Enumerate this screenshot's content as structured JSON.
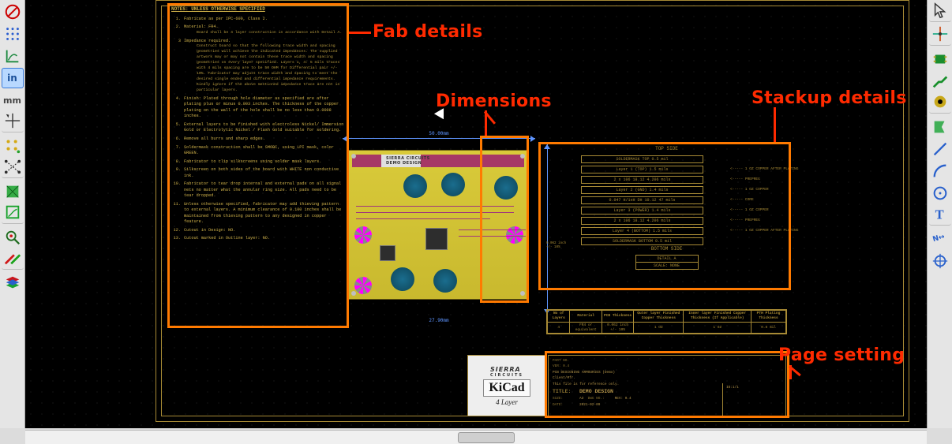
{
  "colors": {
    "canvas_bg": "#000000",
    "grid_dot": "#2a2a2a",
    "sheet_line": "#a78a35",
    "fab_text": "#d0b24a",
    "dim_line": "#5e95ff",
    "annotation_text": "#ff2a00",
    "callout_border": "#ff7a00",
    "pcb_fill": "#d9ca3a",
    "pcb_magenta": "#a0357c",
    "pcb_teal": "#1a6d8e"
  },
  "annotations": {
    "fab": "Fab details",
    "dims": "Dimensions",
    "stack": "Stackup details",
    "page": "Page setting"
  },
  "fab_notes": {
    "title": "NOTES: UNLESS OTHERWISE SPECIFIED",
    "items": [
      {
        "n": "1.",
        "t": "Fabricate as per IPC-600, Class 2."
      },
      {
        "n": "2.",
        "t": "Material: FR4.",
        "sub": "Board shall be 4 layer construction in accordance with Detail A."
      },
      {
        "n": "3",
        "t": "Impedance required.",
        "sub": "Construct board so that the following trace width and spacing geometries will achieve the indicated impedances. The supplied artwork may or may not contain these trace width and spacing geometries on every layer specified.\nLayers 1, 4: 5 mils traces with 4 mils spacing are to be 50 OHM for Differential pair +/- 10%.\nFabricator may adjust trace width and spacing to meet the desired single ended and differential impedance requirements.\nKindly ignore if the above mentioned impedance trace are not in particular layers."
      },
      {
        "n": "4.",
        "t": "Finish: Plated through hole diameter as specified are after plating plus or minus 0.003 inches. The thickness of the copper plating on the wall of the hole shall be no less than 0.0008 inches."
      },
      {
        "n": "5.",
        "t": "External layers to be finished with electroless Nickel/ Immersion Gold or Electrolytic Nickel / Flash Gold suitable for soldering."
      },
      {
        "n": "6.",
        "t": "Remove all burrs and sharp edges."
      },
      {
        "n": "7.",
        "t": "Soldermask construction shall be SMOBC, using LPI mask, color GREEN."
      },
      {
        "n": "8.",
        "t": "Fabricator to clip silkscreens using solder mask layers."
      },
      {
        "n": "9.",
        "t": "Silkscreen on both sides of the board with WHITE non conductive ink."
      },
      {
        "n": "10.",
        "t": "Fabricator to tear drop internal and external pads on all signal nets no matter what the annular ring size. All pads need to be tear dropped."
      },
      {
        "n": "11.",
        "t": "Unless otherwise specified, fabricator may add thieving pattern to external layers. A minimum clearance of 0.100 inches shall be maintained from thieving pattern to any designed in copper feature."
      },
      {
        "n": "12.",
        "t": "Cutout in Design: NO."
      },
      {
        "n": "13.",
        "t": "Cutout marked in Outline layer: NO."
      }
    ]
  },
  "pcb": {
    "title1": "SIERRA CIRCUITS",
    "title2": "DEMO DESIGN",
    "dims": {
      "width": "50.00mm",
      "height_label": "",
      "bottom": "27.90mm"
    }
  },
  "stackup": {
    "top_side": "TOP SIDE",
    "bottom_side": "BOTTOM SIDE",
    "rows": [
      {
        "label": "SOLDERMASK TOP   0.5 mil",
        "note": ""
      },
      {
        "label": "Layer 1 (TOP)   1.5 mils",
        "note": "<----- 1 OZ COPPER AFTER PLATING"
      },
      {
        "label": "2 x 106 18.12   4.206 mils",
        "note": "<----- PREPREG"
      },
      {
        "label": "Layer 2 (GND)   1.4 mils",
        "note": "<----- 1 OZ COPPER"
      },
      {
        "label": "0.047 H/1xH DH 10.12   47 mils",
        "note": "<----- CORE"
      },
      {
        "label": "Layer 3 (POWER)   1.4 mils",
        "note": "<----- 1 OZ COPPER"
      },
      {
        "label": "2 x 106 18.12   4.206 mils",
        "note": "<----- PREPREG"
      },
      {
        "label": "Layer 4 (BOTTOM)   1.5 mils",
        "note": "<----- 1 OZ COPPER AFTER PLATING"
      },
      {
        "label": "SOLDERMASK BOTTOM   0.5 mil",
        "note": ""
      }
    ],
    "legend_total": "0.062 inch",
    "legend_tol": "+/- 10%",
    "detail_title": "DETAIL A",
    "detail_scale": "SCALE: NONE"
  },
  "spec_table": {
    "headers": [
      "No of\nLayers",
      "Material",
      "PCB Thickness",
      "Outer layer\nFinished\nCopper Thickness",
      "Inner layer Finished\nCopper Thickness\n(If Applicable)",
      "PTH Plating\nThickness"
    ],
    "row": [
      "4",
      "FR4 or\nequivalent",
      "0.062 inch\n+/- 10%",
      "1 OZ",
      "1 OZ",
      "0.8 mil"
    ]
  },
  "logo": {
    "sierra": "SIERRA",
    "sierra_sub": "CIRCUITS",
    "kicad": "KiCad",
    "k4l": "4 Layer"
  },
  "title_block": {
    "part_no": "PART NO.",
    "ver": "VER: 0.4",
    "desc": "PCB DESIGNING ARMOURIES (Demo)",
    "cust": "Client/Mfr.",
    "note": "This file is for reference only.",
    "title_lbl": "TITLE:",
    "title_val": "DEMO DESIGN",
    "size_lbl": "SIZE:",
    "size_val": "A3",
    "dwg_lbl": "DWG NO.:",
    "dwg_val": "REV: 0.4",
    "date_lbl": "DATE:",
    "date_val": "2021-02-09",
    "sheet": "ID:1/1"
  },
  "toolbar_left": [
    "no-tool",
    "grid-dots",
    "polar-axes",
    "inch",
    "mm",
    "cursor-full",
    "pad-grid",
    "ratsnest",
    "zone-fill",
    "zone-outline",
    "spacer",
    "measure",
    "highlight",
    "spacer",
    "layers-manager"
  ],
  "toolbar_right": [
    "select",
    "snap-grid",
    "pcb-green",
    "route",
    "via",
    "spacer",
    "zone-draw",
    "line",
    "arc",
    "polygon",
    "text",
    "spacer",
    "dimension",
    "origin"
  ]
}
